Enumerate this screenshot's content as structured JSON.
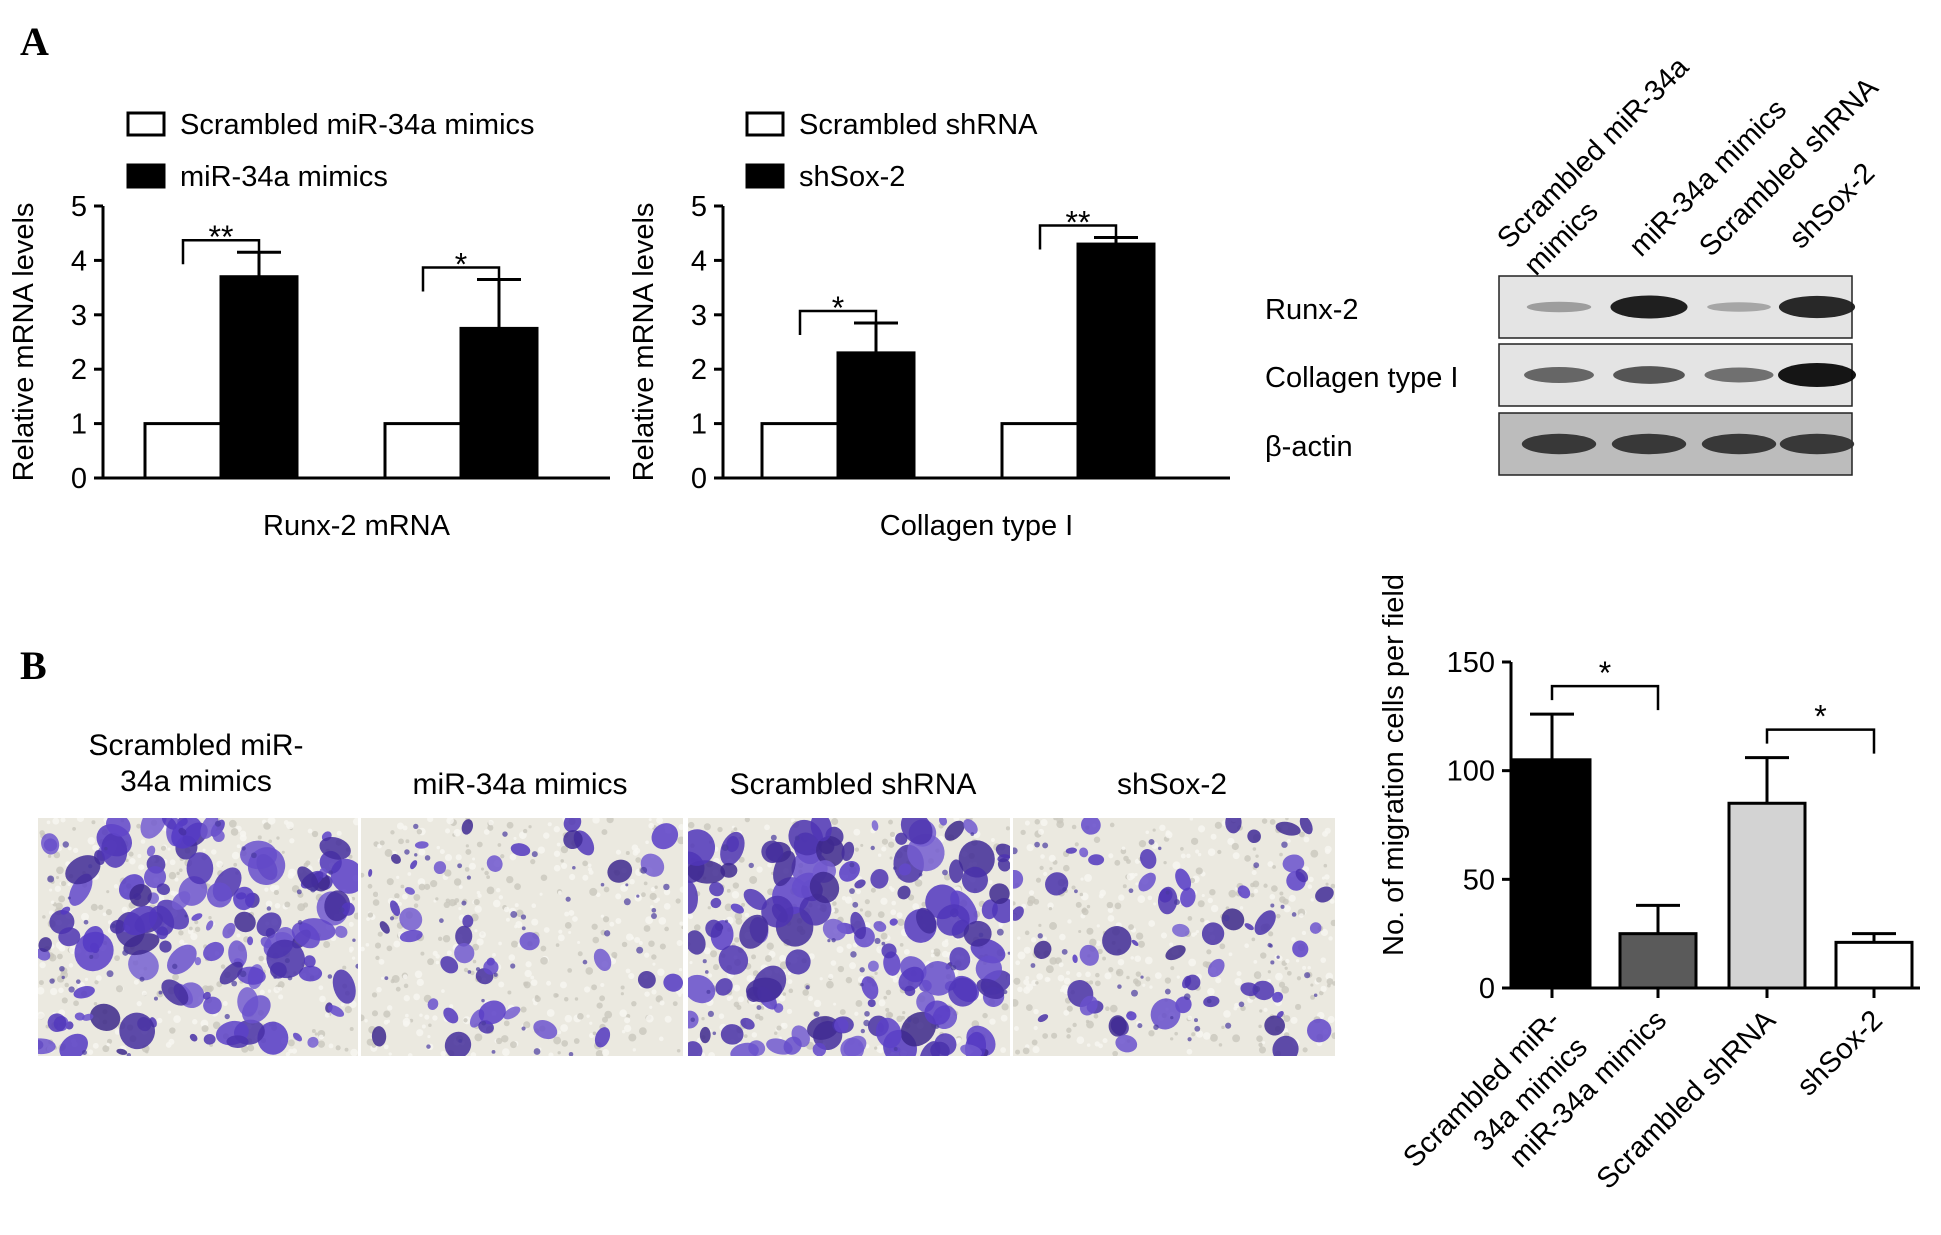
{
  "panel_labels": {
    "a": "A",
    "b": "B"
  },
  "colors": {
    "black": "#000000",
    "white": "#ffffff",
    "dark_gray": "#5a5a5a",
    "light_gray": "#d3d3d3",
    "stain": "#5a3fb8",
    "background_field": "#ebe9e0"
  },
  "chart_data": [
    {
      "type": "bar",
      "panel": "A-left",
      "title": "",
      "ylabel": "Relative mRNA levels",
      "xlabel": "Runx-2 mRNA",
      "ylim": [
        0,
        5
      ],
      "yticks": [
        "0",
        "1",
        "2",
        "3",
        "4",
        "5"
      ],
      "series": [
        {
          "name": "Scrambled miR-34a mimics",
          "color": "#ffffff",
          "values": [
            1,
            1
          ]
        },
        {
          "name": "miR-34a mimics",
          "color": "#000000",
          "values": [
            3.7,
            2.75
          ],
          "errors": [
            0.45,
            0.9
          ]
        }
      ],
      "significance": [
        "**",
        "*"
      ]
    },
    {
      "type": "bar",
      "panel": "A-middle",
      "title": "",
      "ylabel": "Relative mRNA levels",
      "xlabel": "Collagen type I",
      "ylim": [
        0,
        5
      ],
      "yticks": [
        "0",
        "1",
        "2",
        "3",
        "4",
        "5"
      ],
      "series": [
        {
          "name": "Scrambled shRNA",
          "color": "#ffffff",
          "values": [
            1,
            1
          ]
        },
        {
          "name": "shSox-2",
          "color": "#000000",
          "values": [
            2.3,
            4.3
          ],
          "errors": [
            0.55,
            0.12
          ]
        }
      ],
      "significance": [
        "*",
        "**"
      ]
    },
    {
      "type": "bar",
      "panel": "B-right",
      "title": "",
      "ylabel": "No. of migration cells per field",
      "xlabel": "",
      "ylim": [
        0,
        150
      ],
      "yticks": [
        "0",
        "50",
        "100",
        "150"
      ],
      "categories": [
        "Scrambled miR-\n34a mimics",
        "miR-34a mimics",
        "Scrambled shRNA",
        "shSox-2"
      ],
      "values": [
        105,
        25,
        85,
        21
      ],
      "errors": [
        21,
        13,
        21,
        4
      ],
      "bar_colors": [
        "#000000",
        "#5a5a5a",
        "#d3d3d3",
        "#ffffff"
      ],
      "significance": [
        {
          "pair": [
            0,
            1
          ],
          "label": "*"
        },
        {
          "pair": [
            2,
            3
          ],
          "label": "*"
        }
      ]
    }
  ],
  "western_blot": {
    "lanes": [
      "Scrambled miR-34a\nmimics",
      "miR-34a mimics",
      "Scrambled shRNA",
      "shSox-2"
    ],
    "rows": [
      {
        "label": "Runx-2",
        "band_intensity": [
          0.25,
          0.95,
          0.2,
          0.9
        ]
      },
      {
        "label": "Collagen type I",
        "band_intensity": [
          0.55,
          0.65,
          0.5,
          1.0
        ]
      },
      {
        "label": "β-actin",
        "band_intensity": [
          0.8,
          0.8,
          0.8,
          0.8
        ]
      }
    ]
  },
  "micrographs": {
    "titles": [
      "Scrambled miR-\n34a mimics",
      "miR-34a mimics",
      "Scrambled shRNA",
      "shSox-2"
    ],
    "cell_density": [
      0.8,
      0.25,
      0.85,
      0.35
    ]
  }
}
